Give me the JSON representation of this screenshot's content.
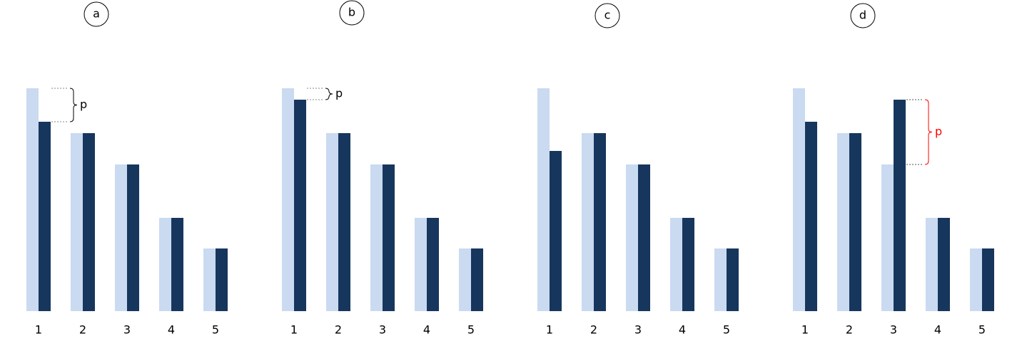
{
  "chart_data": [
    {
      "type": "bar",
      "title": "a",
      "categories": [
        "1",
        "2",
        "3",
        "4",
        "5"
      ],
      "series": [
        {
          "color": "#c9daf1",
          "values": [
            313,
            250,
            206,
            131,
            88
          ]
        },
        {
          "color": "#17365d",
          "values": [
            266,
            250,
            206,
            131,
            88
          ]
        }
      ],
      "ylim": [
        0,
        313
      ],
      "annotation": {
        "text": "p",
        "category": "1",
        "color": "#000000"
      }
    },
    {
      "type": "bar",
      "title": "b",
      "categories": [
        "1",
        "2",
        "3",
        "4",
        "5"
      ],
      "series": [
        {
          "color": "#c9daf1",
          "values": [
            313,
            250,
            206,
            131,
            88
          ]
        },
        {
          "color": "#17365d",
          "values": [
            297,
            250,
            206,
            131,
            88
          ]
        }
      ],
      "ylim": [
        0,
        313
      ],
      "annotation": {
        "text": "p",
        "category": "1",
        "color": "#000000"
      }
    },
    {
      "type": "bar",
      "title": "c",
      "categories": [
        "1",
        "2",
        "3",
        "4",
        "5"
      ],
      "series": [
        {
          "color": "#c9daf1",
          "values": [
            313,
            250,
            206,
            131,
            88
          ]
        },
        {
          "color": "#17365d",
          "values": [
            225,
            250,
            206,
            131,
            88
          ]
        }
      ],
      "ylim": [
        0,
        313
      ]
    },
    {
      "type": "bar",
      "title": "d",
      "categories": [
        "1",
        "2",
        "3",
        "4",
        "5"
      ],
      "series": [
        {
          "color": "#c9daf1",
          "values": [
            313,
            250,
            206,
            131,
            88
          ]
        },
        {
          "color": "#17365d",
          "values": [
            266,
            250,
            297,
            131,
            88
          ]
        }
      ],
      "ylim": [
        0,
        313
      ],
      "annotation": {
        "text": "p",
        "category": "3",
        "color": "#ff0000"
      }
    }
  ]
}
